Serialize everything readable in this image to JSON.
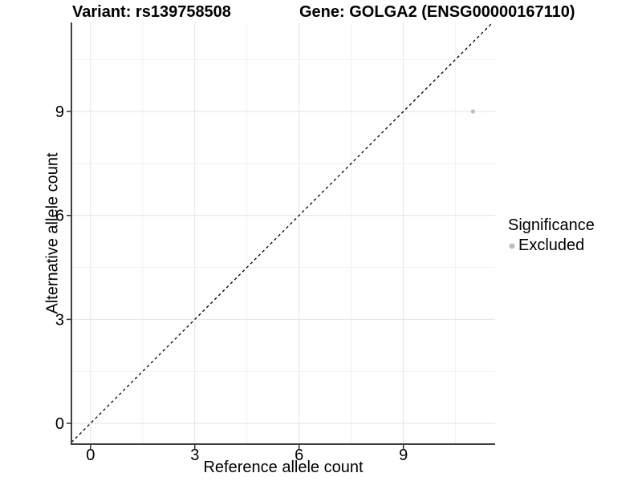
{
  "titles": {
    "variant": "Variant: rs139758508",
    "gene": "Gene: GOLGA2 (ENSG00000167110)"
  },
  "axes": {
    "x": {
      "label": "Reference allele count"
    },
    "y": {
      "label": "Alternative allele count"
    }
  },
  "legend": {
    "title": "Significance",
    "items": [
      {
        "label": "Excluded",
        "color": "#bdbdbd"
      }
    ]
  },
  "chart_data": {
    "type": "scatter",
    "title_left": "Variant: rs139758508",
    "title_right": "Gene: GOLGA2 (ENSG00000167110)",
    "xlabel": "Reference allele count",
    "ylabel": "Alternative allele count",
    "xlim": [
      -0.55,
      11.64
    ],
    "ylim": [
      -0.6,
      11.57
    ],
    "x_major_ticks": [
      0,
      3,
      6,
      9
    ],
    "y_major_ticks": [
      0,
      3,
      6,
      9
    ],
    "x_minor_gridlines": [
      1.5,
      4.5,
      7.5,
      10.5
    ],
    "y_minor_gridlines": [
      1.5,
      4.5,
      7.5,
      10.5
    ],
    "series": [
      {
        "name": "Excluded",
        "marker": "circle",
        "color": "#bdbdbd",
        "points": [
          [
            11,
            9
          ]
        ]
      }
    ],
    "annotations": [
      {
        "type": "identity-line",
        "equation": "y = x",
        "style": "dashed",
        "color": "#000000"
      }
    ],
    "grid": true,
    "legend_position": "right",
    "colors": {
      "grid_major": "#e4e4e4",
      "grid_minor": "#f1f1f1",
      "axis_line": "#3f3f3f",
      "tick_mark": "#333333",
      "text": "#000000",
      "point": "#bdbdbd",
      "background": "#ffffff"
    }
  }
}
